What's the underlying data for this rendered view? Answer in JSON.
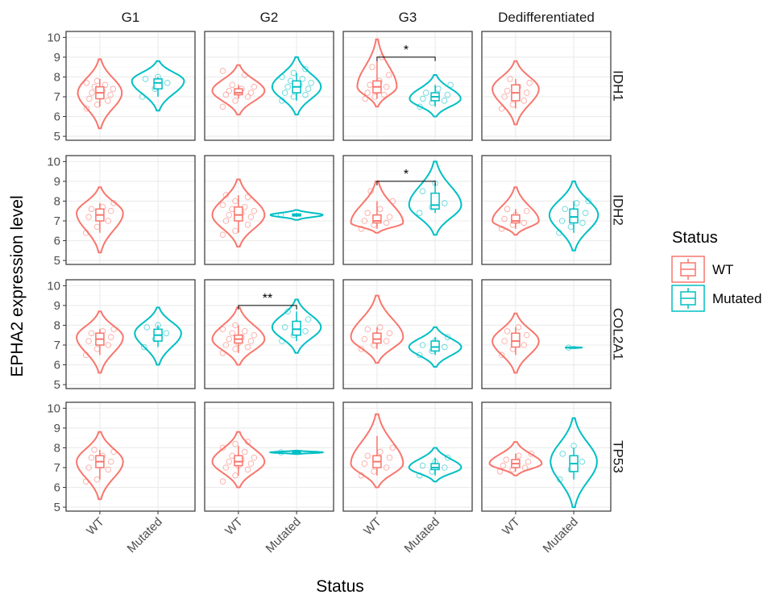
{
  "chart_data": {
    "type": "violin",
    "xlabel": "Status",
    "ylabel": "EPHA2 expression level",
    "ylim": [
      4.8,
      10.3
    ],
    "yticks": [
      5,
      6,
      7,
      8,
      9,
      10
    ],
    "columns": [
      "G1",
      "G2",
      "G3",
      "Dedifferentiated"
    ],
    "rows": [
      "IDH1",
      "IDH2",
      "COL2A1",
      "TP53"
    ],
    "categories": [
      "WT",
      "Mutated"
    ],
    "legend": {
      "title": "Status",
      "position": "right",
      "entries": [
        {
          "label": "WT",
          "color": "#F8766D"
        },
        {
          "label": "Mutated",
          "color": "#00BFC4"
        }
      ]
    },
    "grid": true,
    "panels": [
      {
        "row": "IDH1",
        "col": "G1",
        "groups": [
          {
            "status": "WT",
            "min": 5.4,
            "max": 8.9,
            "mode": 7.2,
            "width": 0.38,
            "q1": 6.9,
            "median": 7.2,
            "q3": 7.5,
            "lo": 6.5,
            "hi": 7.9,
            "points": [
              6.4,
              6.6,
              6.8,
              6.9,
              7.0,
              7.1,
              7.2,
              7.3,
              7.4,
              7.5,
              7.6,
              7.7,
              7.8
            ]
          },
          {
            "status": "Mutated",
            "min": 6.3,
            "max": 8.8,
            "mode": 7.8,
            "width": 0.45,
            "q1": 7.4,
            "median": 7.7,
            "q3": 7.9,
            "lo": 7.0,
            "hi": 8.0,
            "points": [
              7.0,
              7.4,
              7.7,
              7.9,
              8.0
            ]
          }
        ]
      },
      {
        "row": "IDH1",
        "col": "G2",
        "groups": [
          {
            "status": "WT",
            "min": 6.1,
            "max": 8.6,
            "mode": 7.3,
            "width": 0.45,
            "q1": 7.1,
            "median": 7.2,
            "q3": 7.4,
            "lo": 6.9,
            "hi": 7.6,
            "points": [
              6.5,
              6.8,
              7.0,
              7.1,
              7.2,
              7.2,
              7.3,
              7.4,
              7.5,
              7.6,
              8.1,
              8.3
            ]
          },
          {
            "status": "Mutated",
            "min": 6.1,
            "max": 9.0,
            "mode": 7.5,
            "width": 0.42,
            "q1": 7.2,
            "median": 7.5,
            "q3": 7.8,
            "lo": 6.8,
            "hi": 8.2,
            "points": [
              6.8,
              7.0,
              7.1,
              7.2,
              7.3,
              7.4,
              7.5,
              7.6,
              7.7,
              7.8,
              7.9,
              8.0,
              8.2,
              8.4
            ]
          }
        ]
      },
      {
        "row": "IDH1",
        "col": "G3",
        "groups": [
          {
            "status": "WT",
            "min": 6.5,
            "max": 9.9,
            "mode": 7.5,
            "width": 0.34,
            "q1": 7.2,
            "median": 7.5,
            "q3": 7.8,
            "lo": 6.9,
            "hi": 8.8,
            "points": [
              6.9,
              7.0,
              7.1,
              7.2,
              7.3,
              7.5,
              7.6,
              7.8,
              8.1,
              8.5,
              9.0
            ]
          },
          {
            "status": "Mutated",
            "min": 6.0,
            "max": 8.1,
            "mode": 6.9,
            "width": 0.44,
            "q1": 6.8,
            "median": 7.0,
            "q3": 7.2,
            "lo": 6.5,
            "hi": 7.6,
            "points": [
              6.5,
              6.7,
              6.8,
              6.9,
              7.0,
              7.1,
              7.2,
              7.4,
              7.6
            ]
          }
        ]
      },
      {
        "row": "IDH1",
        "col": "Dedifferentiated",
        "groups": [
          {
            "status": "WT",
            "min": 5.6,
            "max": 8.8,
            "mode": 7.4,
            "width": 0.4,
            "q1": 6.8,
            "median": 7.2,
            "q3": 7.6,
            "lo": 6.4,
            "hi": 7.9,
            "points": [
              6.4,
              6.6,
              6.8,
              7.0,
              7.1,
              7.2,
              7.3,
              7.5,
              7.7,
              7.9
            ]
          }
        ]
      },
      {
        "row": "IDH2",
        "col": "G1",
        "groups": [
          {
            "status": "WT",
            "min": 5.4,
            "max": 8.7,
            "mode": 7.4,
            "width": 0.4,
            "q1": 7.0,
            "median": 7.3,
            "q3": 7.6,
            "lo": 6.4,
            "hi": 7.9,
            "points": [
              6.4,
              6.7,
              7.0,
              7.2,
              7.3,
              7.5,
              7.6,
              7.7,
              7.9
            ]
          }
        ]
      },
      {
        "row": "IDH2",
        "col": "G2",
        "groups": [
          {
            "status": "WT",
            "min": 5.7,
            "max": 9.1,
            "mode": 7.3,
            "width": 0.45,
            "q1": 7.0,
            "median": 7.3,
            "q3": 7.7,
            "lo": 6.4,
            "hi": 8.3,
            "points": [
              6.3,
              6.5,
              6.8,
              7.0,
              7.1,
              7.2,
              7.3,
              7.4,
              7.5,
              7.6,
              7.7,
              7.8,
              8.0,
              8.2,
              8.3
            ]
          },
          {
            "status": "Mutated",
            "min": 7.05,
            "max": 7.55,
            "mode": 7.3,
            "width": 0.45,
            "q1": 7.25,
            "median": 7.3,
            "q3": 7.35,
            "lo": 7.2,
            "hi": 7.4,
            "points": [
              7.3
            ]
          }
        ]
      },
      {
        "row": "IDH2",
        "col": "G3",
        "groups": [
          {
            "status": "WT",
            "min": 6.4,
            "max": 9.0,
            "mode": 6.9,
            "width": 0.45,
            "q1": 6.9,
            "median": 7.0,
            "q3": 7.3,
            "lo": 6.6,
            "hi": 8.0,
            "points": [
              6.6,
              6.8,
              6.9,
              7.0,
              7.1,
              7.2,
              7.4,
              7.6,
              8.0,
              8.5
            ]
          },
          {
            "status": "Mutated",
            "min": 6.3,
            "max": 10.0,
            "mode": 7.8,
            "width": 0.45,
            "q1": 7.6,
            "median": 7.8,
            "q3": 8.4,
            "lo": 7.4,
            "hi": 8.9,
            "points": [
              7.4,
              7.7,
              7.9,
              8.5,
              8.9
            ]
          }
        ]
      },
      {
        "row": "IDH2",
        "col": "Dedifferentiated",
        "groups": [
          {
            "status": "WT",
            "min": 6.3,
            "max": 8.7,
            "mode": 7.0,
            "width": 0.4,
            "q1": 6.9,
            "median": 7.0,
            "q3": 7.3,
            "lo": 6.6,
            "hi": 7.6,
            "points": [
              6.6,
              6.8,
              6.9,
              7.1,
              7.3,
              7.5,
              7.6
            ]
          },
          {
            "status": "Mutated",
            "min": 5.5,
            "max": 9.0,
            "mode": 7.3,
            "width": 0.42,
            "q1": 6.9,
            "median": 7.2,
            "q3": 7.6,
            "lo": 6.4,
            "hi": 8.0,
            "points": [
              6.4,
              6.7,
              6.9,
              7.0,
              7.2,
              7.4,
              7.6,
              7.9,
              8.0
            ]
          }
        ]
      },
      {
        "row": "COL2A1",
        "col": "G1",
        "groups": [
          {
            "status": "WT",
            "min": 5.6,
            "max": 8.7,
            "mode": 7.4,
            "width": 0.4,
            "q1": 7.0,
            "median": 7.3,
            "q3": 7.6,
            "lo": 6.5,
            "hi": 7.8,
            "points": [
              6.5,
              6.8,
              7.0,
              7.2,
              7.3,
              7.4,
              7.6,
              7.7,
              7.8
            ]
          },
          {
            "status": "Mutated",
            "min": 6.0,
            "max": 8.9,
            "mode": 7.6,
            "width": 0.4,
            "q1": 7.2,
            "median": 7.5,
            "q3": 7.8,
            "lo": 6.9,
            "hi": 8.0,
            "points": [
              6.9,
              7.3,
              7.6,
              7.9,
              8.0
            ]
          }
        ]
      },
      {
        "row": "COL2A1",
        "col": "G2",
        "groups": [
          {
            "status": "WT",
            "min": 6.0,
            "max": 8.9,
            "mode": 7.3,
            "width": 0.45,
            "q1": 7.1,
            "median": 7.3,
            "q3": 7.5,
            "lo": 6.6,
            "hi": 8.0,
            "points": [
              6.6,
              6.8,
              6.9,
              7.0,
              7.1,
              7.2,
              7.3,
              7.4,
              7.5,
              7.6,
              7.7,
              7.8,
              8.0
            ]
          },
          {
            "status": "Mutated",
            "min": 6.6,
            "max": 9.3,
            "mode": 7.9,
            "width": 0.42,
            "q1": 7.5,
            "median": 7.8,
            "q3": 8.2,
            "lo": 7.2,
            "hi": 8.7,
            "points": [
              7.2,
              7.5,
              7.7,
              7.9,
              8.1,
              8.3,
              8.7
            ]
          }
        ]
      },
      {
        "row": "COL2A1",
        "col": "G3",
        "groups": [
          {
            "status": "WT",
            "min": 6.1,
            "max": 9.5,
            "mode": 7.4,
            "width": 0.45,
            "q1": 7.1,
            "median": 7.3,
            "q3": 7.6,
            "lo": 6.8,
            "hi": 7.9,
            "points": [
              6.8,
              7.0,
              7.2,
              7.3,
              7.5,
              7.6,
              7.8,
              7.9
            ]
          },
          {
            "status": "Mutated",
            "min": 5.9,
            "max": 7.9,
            "mode": 6.9,
            "width": 0.45,
            "q1": 6.7,
            "median": 6.9,
            "q3": 7.2,
            "lo": 6.5,
            "hi": 7.4,
            "points": [
              6.5,
              6.7,
              6.9,
              7.0,
              7.2,
              7.4
            ]
          }
        ]
      },
      {
        "row": "COL2A1",
        "col": "Dedifferentiated",
        "groups": [
          {
            "status": "WT",
            "min": 5.6,
            "max": 8.6,
            "mode": 7.2,
            "width": 0.4,
            "q1": 6.9,
            "median": 7.2,
            "q3": 7.6,
            "lo": 6.5,
            "hi": 7.9,
            "points": [
              6.5,
              6.8,
              7.0,
              7.2,
              7.3,
              7.5,
              7.7,
              7.9
            ]
          },
          {
            "status": "Mutated",
            "min": 6.85,
            "max": 6.9,
            "mode": 6.87,
            "width": 0.15,
            "q1": 6.86,
            "median": 6.87,
            "q3": 6.88,
            "lo": 6.86,
            "hi": 6.88,
            "points": [
              6.87
            ]
          }
        ]
      },
      {
        "row": "TP53",
        "col": "G1",
        "groups": [
          {
            "status": "WT",
            "min": 5.4,
            "max": 8.8,
            "mode": 7.3,
            "width": 0.4,
            "q1": 7.0,
            "median": 7.3,
            "q3": 7.6,
            "lo": 6.4,
            "hi": 7.9,
            "points": [
              6.3,
              6.4,
              6.9,
              7.0,
              7.2,
              7.3,
              7.5,
              7.6,
              7.8,
              7.9
            ]
          }
        ]
      },
      {
        "row": "TP53",
        "col": "G2",
        "groups": [
          {
            "status": "WT",
            "min": 6.0,
            "max": 8.8,
            "mode": 7.3,
            "width": 0.45,
            "q1": 7.1,
            "median": 7.3,
            "q3": 7.6,
            "lo": 6.6,
            "hi": 8.1,
            "points": [
              6.3,
              6.6,
              6.9,
              7.0,
              7.1,
              7.2,
              7.3,
              7.4,
              7.5,
              7.6,
              7.8,
              8.0,
              8.2,
              8.3
            ]
          },
          {
            "status": "Mutated",
            "min": 7.68,
            "max": 7.86,
            "mode": 7.77,
            "width": 0.45,
            "q1": 7.75,
            "median": 7.77,
            "q3": 7.8,
            "lo": 7.72,
            "hi": 7.82,
            "points": [
              7.77
            ]
          }
        ]
      },
      {
        "row": "TP53",
        "col": "G3",
        "groups": [
          {
            "status": "WT",
            "min": 6.0,
            "max": 9.7,
            "mode": 7.2,
            "width": 0.45,
            "q1": 7.0,
            "median": 7.3,
            "q3": 7.6,
            "lo": 6.6,
            "hi": 8.6,
            "points": [
              6.6,
              6.8,
              7.0,
              7.2,
              7.3,
              7.5,
              7.6,
              7.8,
              8.0
            ]
          },
          {
            "status": "Mutated",
            "min": 6.3,
            "max": 8.0,
            "mode": 7.0,
            "width": 0.45,
            "q1": 6.9,
            "median": 7.0,
            "q3": 7.2,
            "lo": 6.6,
            "hi": 7.5,
            "points": [
              6.6,
              6.8,
              7.0,
              7.1,
              7.3,
              7.5
            ]
          }
        ]
      },
      {
        "row": "TP53",
        "col": "Dedifferentiated",
        "groups": [
          {
            "status": "WT",
            "min": 6.6,
            "max": 8.3,
            "mode": 7.2,
            "width": 0.45,
            "q1": 7.0,
            "median": 7.2,
            "q3": 7.4,
            "lo": 6.8,
            "hi": 7.7,
            "points": [
              6.8,
              6.9,
              7.0,
              7.1,
              7.2,
              7.3,
              7.4,
              7.6,
              7.7
            ]
          },
          {
            "status": "Mutated",
            "min": 5.0,
            "max": 9.5,
            "mode": 7.3,
            "width": 0.4,
            "q1": 6.8,
            "median": 7.2,
            "q3": 7.6,
            "lo": 6.4,
            "hi": 8.0,
            "points": [
              6.4,
              6.9,
              7.3,
              7.7,
              8.1
            ]
          }
        ]
      }
    ],
    "annotations": [
      {
        "row": "IDH1",
        "col": "G3",
        "label": "*",
        "y": 9.0
      },
      {
        "row": "IDH2",
        "col": "G3",
        "label": "*",
        "y": 9.0
      },
      {
        "row": "COL2A1",
        "col": "G2",
        "label": "**",
        "y": 9.0
      }
    ]
  }
}
